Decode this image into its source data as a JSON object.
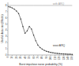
{
  "chart_data": {
    "type": "line",
    "title": "",
    "xlabel": "Burst impulsive noise probability (%)",
    "ylabel": "Useful data rate (Mbit/s)",
    "series": [
      {
        "color": "#999999",
        "x": [
          0,
          10,
          20,
          30,
          40,
          50,
          60,
          70,
          80,
          90,
          100,
          110,
          120,
          130,
          140,
          150
        ],
        "values": [
          8.0,
          8.0,
          8.0,
          8.0,
          8.0,
          8.0,
          8.0,
          8.0,
          8.0,
          8.0,
          8.0,
          8.0,
          8.0,
          8.0,
          8.0,
          8.0
        ]
      },
      {
        "color": "#333333",
        "marker": "dot",
        "x": [
          0,
          5,
          10,
          15,
          20,
          25,
          30,
          35,
          40,
          45,
          50,
          55,
          60,
          65,
          70,
          75,
          80,
          85,
          90,
          95,
          100,
          105,
          110,
          115,
          120,
          125,
          130,
          135,
          140,
          145,
          150
        ],
        "values": [
          7.8,
          7.75,
          7.6,
          7.4,
          7.1,
          6.7,
          5.8,
          4.6,
          3.5,
          3.9,
          4.6,
          4.2,
          3.2,
          2.3,
          1.6,
          1.2,
          0.95,
          0.75,
          0.6,
          0.5,
          0.42,
          0.36,
          0.3,
          0.26,
          0.22,
          0.19,
          0.17,
          0.15,
          0.13,
          0.12,
          0.1
        ]
      }
    ],
    "annotations": [
      {
        "text": "with ARQ",
        "x": 105,
        "y": 8.25,
        "color": "#999999"
      },
      {
        "text": "wout ARQ",
        "x": 105,
        "y": 1.5,
        "color": "#333333"
      }
    ],
    "xlim": [
      0,
      153
    ],
    "ylim": [
      0,
      8.5
    ],
    "xticks": [
      0,
      10,
      20,
      30,
      40,
      50,
      60,
      70,
      80,
      90,
      100,
      110,
      120,
      130,
      140,
      150
    ],
    "yticks": [
      0,
      1,
      2,
      3,
      4,
      5,
      6,
      7,
      8
    ],
    "grid": false
  }
}
